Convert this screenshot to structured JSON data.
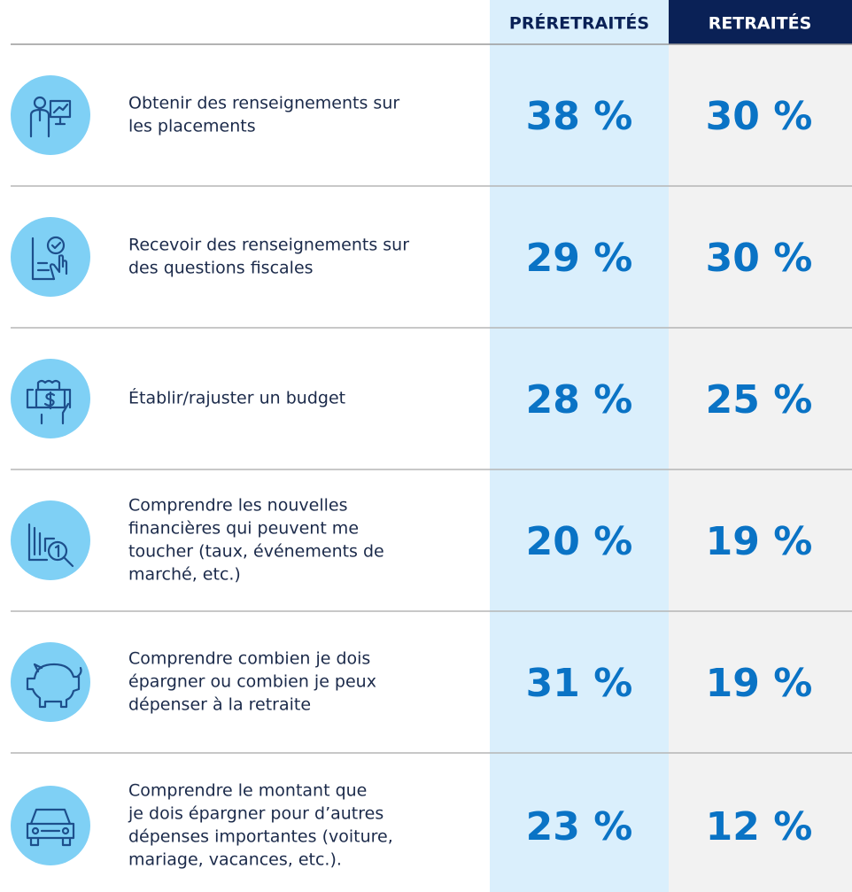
{
  "table": {
    "columns": [
      "PRÉRETRAITÉS",
      "RETRAITÉS"
    ],
    "rows": [
      {
        "label": [
          "Obtenir des renseignements sur",
          "les placements"
        ],
        "values": [
          "38 %",
          "30 %"
        ]
      },
      {
        "label": [
          "Recevoir des renseignements sur",
          "des questions fiscales"
        ],
        "values": [
          "29 %",
          "30 %"
        ]
      },
      {
        "label": [
          "Établir/rajuster un budget"
        ],
        "values": [
          "28 %",
          "25 %"
        ]
      },
      {
        "label": [
          "Comprendre les nouvelles",
          "financières qui peuvent me",
          "toucher (taux, événements de",
          "marché, etc.)"
        ],
        "values": [
          "20 %",
          "19 %"
        ]
      },
      {
        "label": [
          "Comprendre combien je dois",
          "épargner ou combien je peux",
          "dépenser à la retraite"
        ],
        "values": [
          "31 %",
          "19 %"
        ]
      },
      {
        "label": [
          "Comprendre le montant que",
          "je dois épargner pour d’autres",
          "dépenses importantes (voiture,",
          "mariage, vacances, etc.)."
        ],
        "values": [
          "23 %",
          "12 %"
        ]
      }
    ]
  }
}
